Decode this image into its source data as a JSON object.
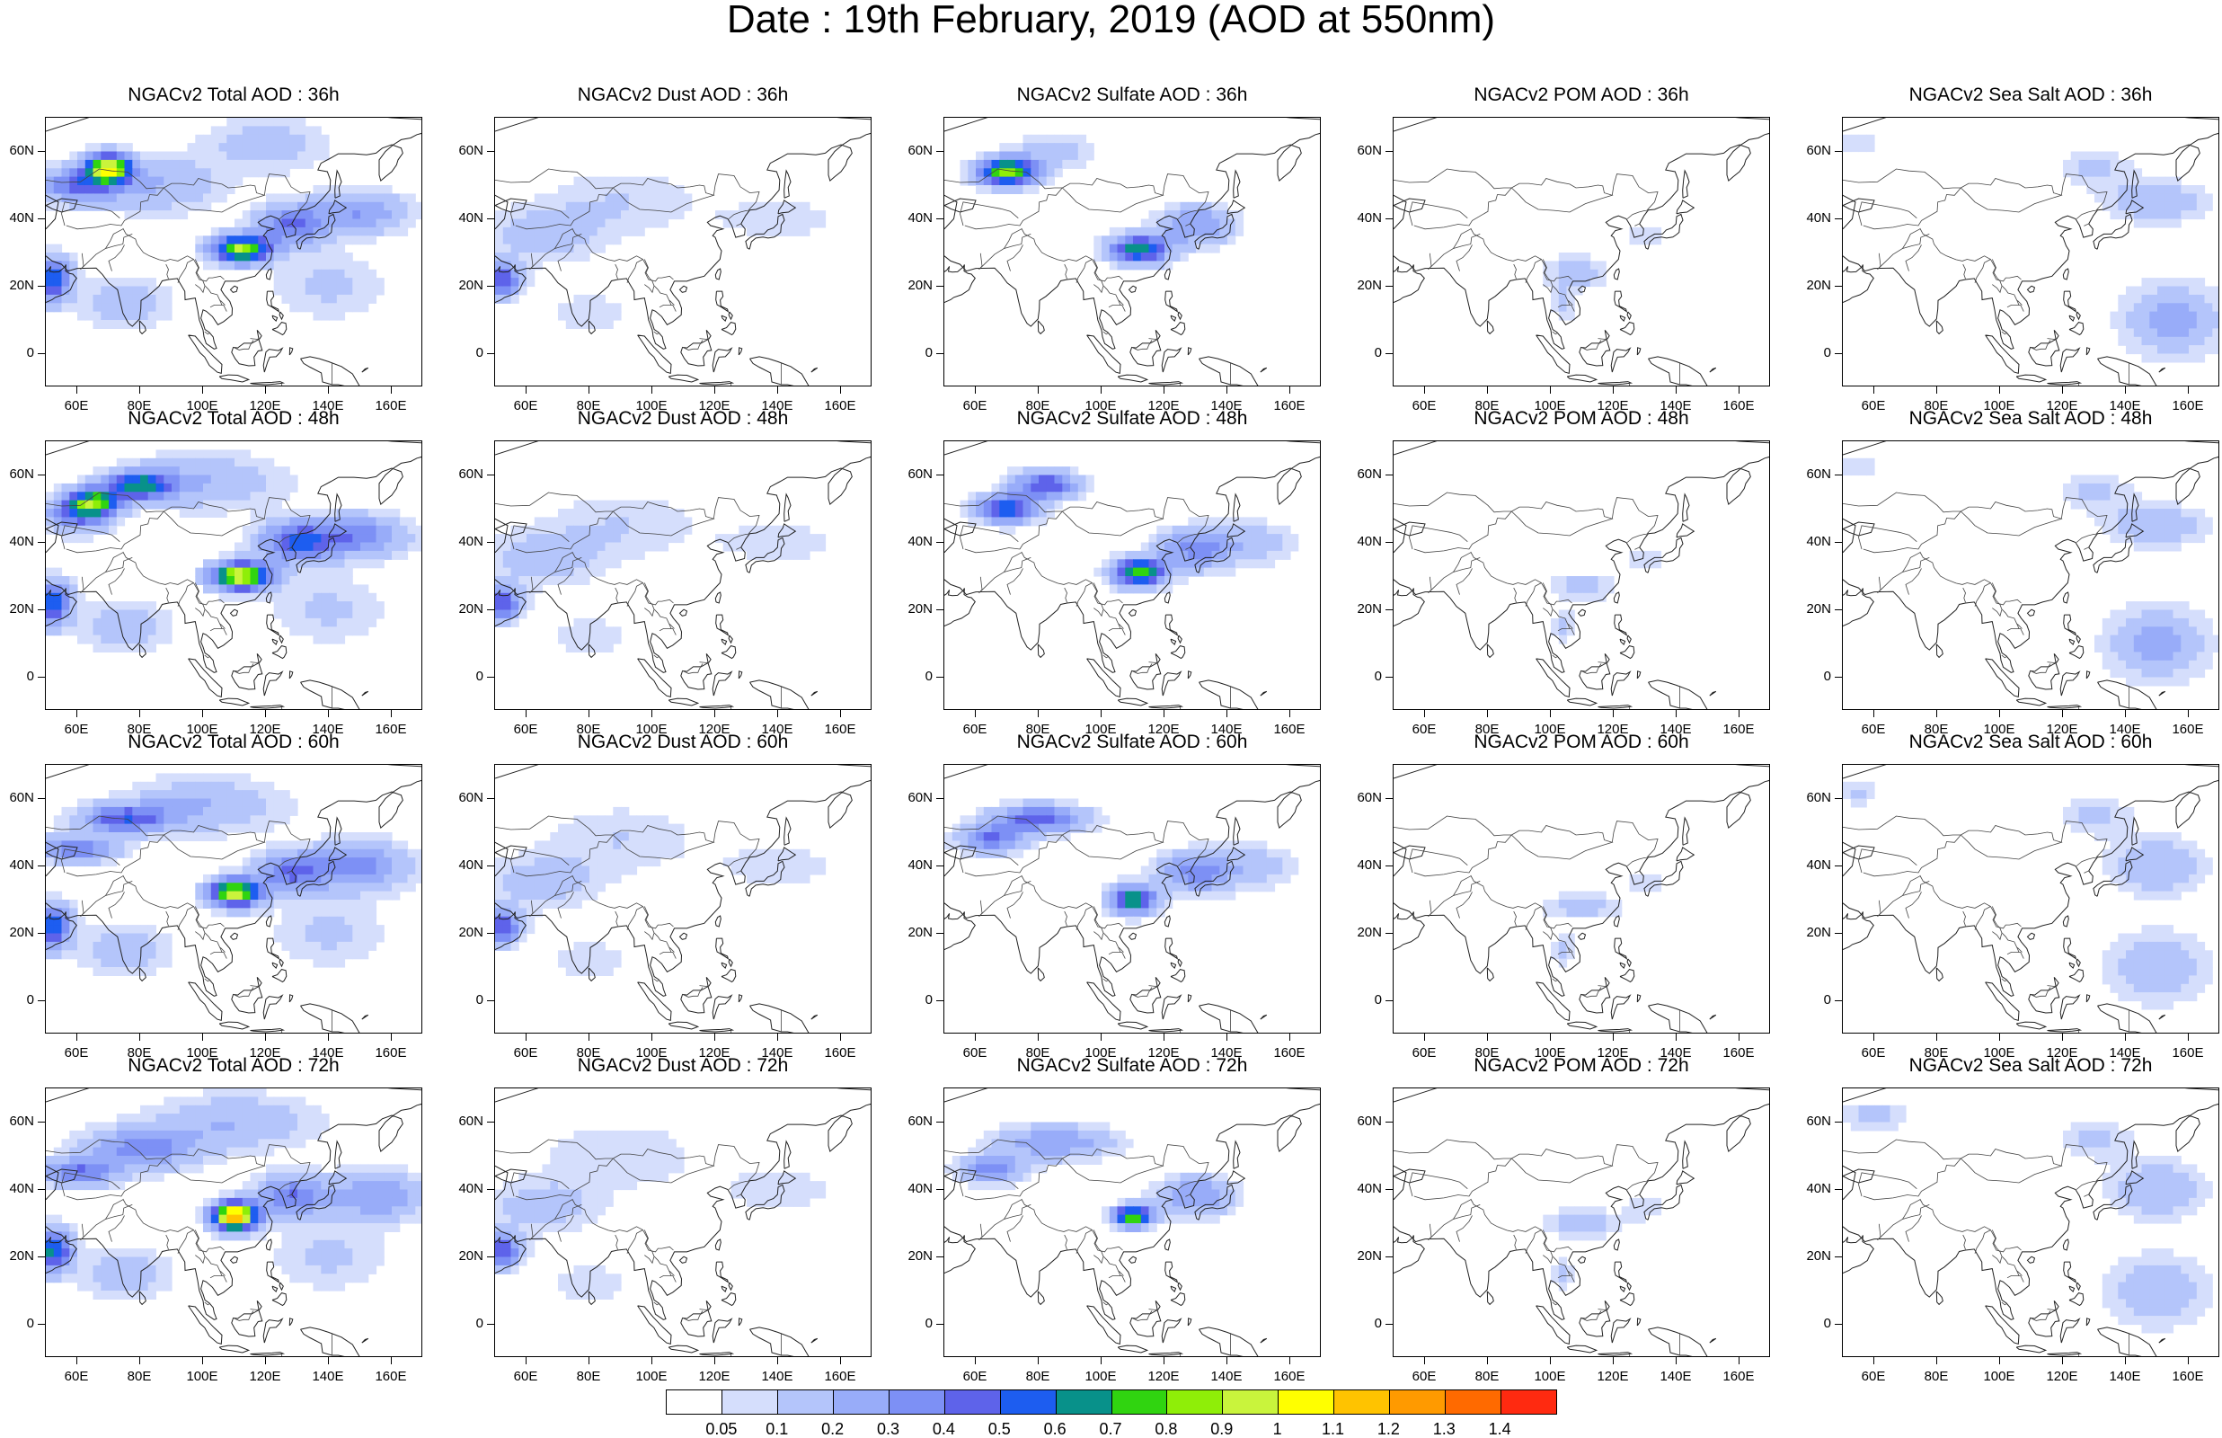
{
  "title": "Date : 19th February, 2019 (AOD at 550nm)",
  "panel_titles": [
    [
      "NGACv2 Total AOD : 36h",
      "NGACv2 Dust AOD : 36h",
      "NGACv2 Sulfate AOD : 36h",
      "NGACv2 POM AOD : 36h",
      "NGACv2 Sea Salt AOD : 36h"
    ],
    [
      "NGACv2 Total AOD : 48h",
      "NGACv2 Dust AOD : 48h",
      "NGACv2 Sulfate AOD : 48h",
      "NGACv2 POM AOD : 48h",
      "NGACv2 Sea Salt AOD : 48h"
    ],
    [
      "NGACv2 Total AOD : 60h",
      "NGACv2 Dust AOD : 60h",
      "NGACv2 Sulfate AOD : 60h",
      "NGACv2 POM AOD : 60h",
      "NGACv2 Sea Salt AOD : 60h"
    ],
    [
      "NGACv2 Total AOD : 72h",
      "NGACv2 Dust AOD : 72h",
      "NGACv2 Sulfate AOD : 72h",
      "NGACv2 POM AOD : 72h",
      "NGACv2 Sea Salt  AOD : 72h"
    ]
  ],
  "lat_labels": [
    "60N",
    "40N",
    "20N",
    "0"
  ],
  "lon_labels": [
    "60E",
    "80E",
    "100E",
    "120E",
    "140E",
    "160E"
  ],
  "colorbar": {
    "colors": [
      "#ffffff",
      "#d5defc",
      "#b4c5fb",
      "#98acf9",
      "#7d90f5",
      "#5e63ea",
      "#1d5df0",
      "#08918a",
      "#30d410",
      "#8fee08",
      "#c9f43c",
      "#ffff00",
      "#ffc300",
      "#ff9a00",
      "#ff6a00",
      "#ff2a10"
    ],
    "labels": [
      "0.05",
      "0.1",
      "0.2",
      "0.3",
      "0.4",
      "0.5",
      "0.6",
      "0.7",
      "0.8",
      "0.9",
      "1",
      "1.1",
      "1.2",
      "1.3",
      "1.4"
    ]
  }
}
